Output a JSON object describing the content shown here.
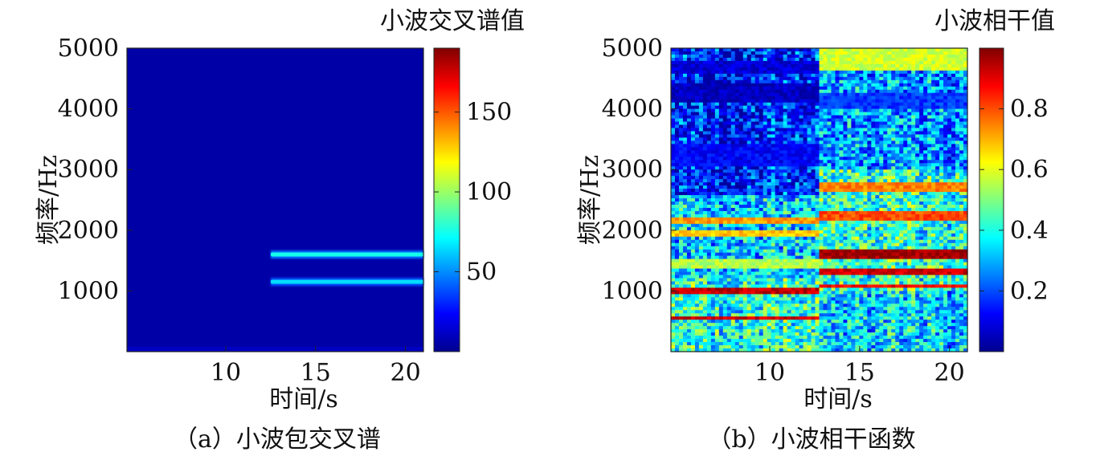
{
  "chart_data": [
    {
      "type": "heatmap",
      "caption": "（a）小波包交叉谱",
      "colorbar_title": "小波交叉谱值",
      "xlabel": "时间/s",
      "ylabel": "频率/Hz",
      "xlim": [
        4.5,
        21
      ],
      "ylim": [
        0,
        5000
      ],
      "xticks": [
        "10",
        "15",
        "20"
      ],
      "xtick_values": [
        10,
        15,
        20
      ],
      "yticks": [
        "1000",
        "2000",
        "3000",
        "4000",
        "5000"
      ],
      "ytick_values": [
        1000,
        2000,
        3000,
        4000,
        5000
      ],
      "colorbar_range": [
        0,
        190
      ],
      "colorbar_ticks": [
        "50",
        "100",
        "150"
      ],
      "colorbar_tick_values": [
        50,
        100,
        150
      ],
      "background_value": 5,
      "features": [
        {
          "x_start": 12.5,
          "x_end": 21,
          "freq": 1600,
          "value": 75
        },
        {
          "x_start": 12.5,
          "x_end": 21,
          "freq": 1150,
          "value": 65
        }
      ]
    },
    {
      "type": "heatmap",
      "caption": "（b）小波相干函数",
      "colorbar_title": "小波相干值",
      "xlabel": "时间/s",
      "ylabel": "频率/Hz",
      "xlim": [
        4.5,
        21
      ],
      "ylim": [
        0,
        5000
      ],
      "xticks": [
        "10",
        "15",
        "20"
      ],
      "xtick_values": [
        10,
        15,
        20
      ],
      "yticks": [
        "1000",
        "2000",
        "3000",
        "4000",
        "5000"
      ],
      "ytick_values": [
        1000,
        2000,
        3000,
        4000,
        5000
      ],
      "colorbar_range": [
        0,
        1
      ],
      "colorbar_ticks": [
        "0.2",
        "0.4",
        "0.6",
        "0.8"
      ],
      "colorbar_tick_values": [
        0.2,
        0.4,
        0.6,
        0.8
      ],
      "split_time": 12.8,
      "regions": [
        {
          "x_start": 4.5,
          "x_end": 12.8,
          "bands": [
            {
              "f_start": 4100,
              "f_end": 4400,
              "value": 0.05
            },
            {
              "f_start": 4600,
              "f_end": 4800,
              "value": 0.08
            },
            {
              "f_start": 3050,
              "f_end": 3400,
              "value": 0.12
            },
            {
              "f_start": 2080,
              "f_end": 2200,
              "value": 0.72
            },
            {
              "f_start": 1880,
              "f_end": 1980,
              "value": 0.68
            },
            {
              "f_start": 1380,
              "f_end": 1500,
              "value": 0.55
            },
            {
              "f_start": 960,
              "f_end": 1050,
              "value": 0.93
            },
            {
              "f_start": 520,
              "f_end": 580,
              "value": 0.92
            }
          ]
        },
        {
          "x_start": 12.8,
          "x_end": 21,
          "bands": [
            {
              "f_start": 4650,
              "f_end": 5000,
              "value": 0.58
            },
            {
              "f_start": 4000,
              "f_end": 4250,
              "value": 0.18
            },
            {
              "f_start": 2650,
              "f_end": 2800,
              "value": 0.75
            },
            {
              "f_start": 2150,
              "f_end": 2300,
              "value": 0.8
            },
            {
              "f_start": 1520,
              "f_end": 1700,
              "value": 0.97
            },
            {
              "f_start": 1280,
              "f_end": 1360,
              "value": 0.92
            },
            {
              "f_start": 1050,
              "f_end": 1120,
              "value": 0.88
            }
          ]
        }
      ]
    }
  ]
}
